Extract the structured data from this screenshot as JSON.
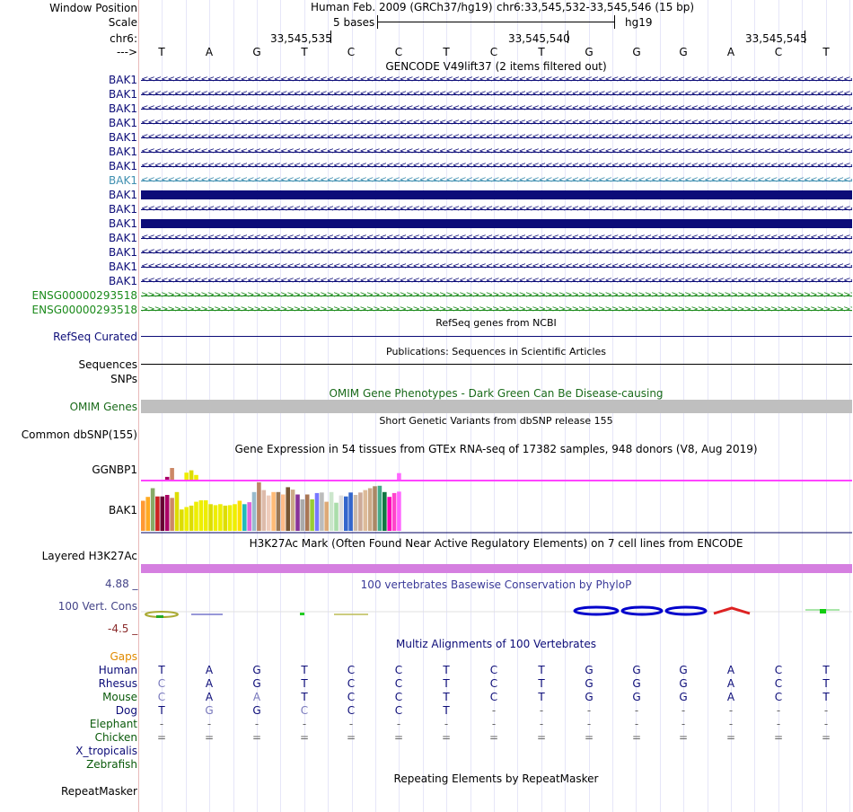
{
  "header": {
    "window_position_label": "Window Position",
    "scale_label": "Scale",
    "chrom_label": "chr6:",
    "strand_label": "--->",
    "assembly": "Human Feb. 2009 (GRCh37/hg19)",
    "position": "chr6:33,545,532-33,545,546 (15 bp)",
    "scale_text": "5 bases",
    "db_text": "hg19",
    "coord_ticks": [
      "33,545,535",
      "33,545,540",
      "33,545,545"
    ]
  },
  "sequence": [
    "T",
    "A",
    "G",
    "T",
    "C",
    "C",
    "T",
    "C",
    "T",
    "G",
    "G",
    "G",
    "A",
    "C",
    "T"
  ],
  "gencode": {
    "title": "GENCODE V49lift37 (2 items filtered out)",
    "tracks": [
      {
        "label": "BAK1",
        "style": "chevron",
        "color": "#0c0c78"
      },
      {
        "label": "BAK1",
        "style": "chevron",
        "color": "#0c0c78"
      },
      {
        "label": "BAK1",
        "style": "chevron",
        "color": "#0c0c78"
      },
      {
        "label": "BAK1",
        "style": "chevron",
        "color": "#0c0c78"
      },
      {
        "label": "BAK1",
        "style": "chevron",
        "color": "#0c0c78"
      },
      {
        "label": "BAK1",
        "style": "chevron",
        "color": "#0c0c78"
      },
      {
        "label": "BAK1",
        "style": "chevron",
        "color": "#0c0c78"
      },
      {
        "label": "BAK1",
        "style": "chevron",
        "color": "#3f8fb0"
      },
      {
        "label": "BAK1",
        "style": "thick",
        "color": "#0c0c78"
      },
      {
        "label": "BAK1",
        "style": "chevron",
        "color": "#0c0c78"
      },
      {
        "label": "BAK1",
        "style": "thick",
        "color": "#0c0c78"
      },
      {
        "label": "BAK1",
        "style": "chevron",
        "color": "#0c0c78"
      },
      {
        "label": "BAK1",
        "style": "chevron",
        "color": "#0c0c78"
      },
      {
        "label": "BAK1",
        "style": "chevron",
        "color": "#0c0c78"
      },
      {
        "label": "BAK1",
        "style": "chevron",
        "color": "#0c0c78"
      },
      {
        "label": "ENSG00000293518",
        "style": "chevron-right",
        "color": "#1a8a1a"
      },
      {
        "label": "ENSG00000293518",
        "style": "chevron-right",
        "color": "#1a8a1a"
      }
    ]
  },
  "refseq": {
    "title": "RefSeq genes from NCBI",
    "label": "RefSeq Curated"
  },
  "publications": {
    "title": "Publications: Sequences in Scientific Articles",
    "label": "Sequences"
  },
  "snps": {
    "label": "SNPs"
  },
  "omim": {
    "title": "OMIM Gene Phenotypes - Dark Green Can Be Disease-causing",
    "label": "OMIM Genes"
  },
  "dbsnp": {
    "title": "Short Genetic Variants from dbSNP release 155",
    "label": "Common dbSNP(155)"
  },
  "gtex": {
    "title": "Gene Expression in 54 tissues from GTEx RNA-seq of 17382 samples, 948 donors (V8, Aug 2019)",
    "genes": [
      "GGNBP1",
      "BAK1"
    ],
    "ggnbp1_values": [
      0,
      0,
      0,
      0,
      0,
      0.12,
      0.5,
      0,
      0,
      0.3,
      0.4,
      0.2,
      0,
      0,
      0,
      0,
      0,
      0,
      0,
      0,
      0,
      0,
      0,
      0,
      0,
      0,
      0,
      0,
      0,
      0,
      0,
      0,
      0,
      0,
      0,
      0,
      0,
      0,
      0,
      0,
      0,
      0,
      0,
      0,
      0,
      0,
      0,
      0,
      0,
      0,
      0,
      0,
      0,
      0.28
    ],
    "bak1_values": [
      0.62,
      0.7,
      0.88,
      0.71,
      0.71,
      0.74,
      0.68,
      0.8,
      0.44,
      0.49,
      0.52,
      0.6,
      0.63,
      0.63,
      0.55,
      0.53,
      0.55,
      0.52,
      0.53,
      0.55,
      0.62,
      0.55,
      0.59,
      0.8,
      1.0,
      0.84,
      0.73,
      0.8,
      0.8,
      0.75,
      0.9,
      0.85,
      0.75,
      0.65,
      0.75,
      0.65,
      0.78,
      0.79,
      0.6,
      0.8,
      0.58,
      0.73,
      0.71,
      0.79,
      0.74,
      0.79,
      0.84,
      0.88,
      0.92,
      0.93,
      0.8,
      0.7,
      0.78,
      0.81
    ],
    "colors": [
      "#ff9933",
      "#ffaa22",
      "#88aa66",
      "#cc2222",
      "#660033",
      "#aa0066",
      "#cc8866",
      "#dddd00",
      "#dddd00",
      "#eeee00",
      "#dddd00",
      "#eeee00",
      "#eeee00",
      "#eeee00",
      "#dddd00",
      "#eeee00",
      "#eeee00",
      "#dddd00",
      "#eeee00",
      "#eeee00",
      "#ffdd00",
      "#22bbbb",
      "#dd66dd",
      "#99bbcc",
      "#bb8866",
      "#ddbbaa",
      "#eeccbb",
      "#ffbb77",
      "#997755",
      "#ffbb88",
      "#775533",
      "#ccaa88",
      "#883399",
      "#aaaaaa",
      "#aa7755",
      "#99cc33",
      "#7777ff",
      "#bbbbbb",
      "#ddaa77",
      "#cce6cc",
      "#aaddaa",
      "#dddddd",
      "#3366cc",
      "#3366cc",
      "#ccbbaa",
      "#ccaa99",
      "#ddbb99",
      "#ccaa88",
      "#aa8866",
      "#44aa88",
      "#117744",
      "#ff00bb",
      "#ff44cc",
      "#ff66ff"
    ]
  },
  "h3k27ac": {
    "title": "H3K27Ac Mark (Often Found Near Active Regulatory Elements) on 7 cell lines from ENCODE",
    "label": "Layered H3K27Ac"
  },
  "phylop": {
    "title": "100 vertebrates Basewise Conservation by PhyloP",
    "label": "100 Vert. Cons",
    "max": "4.88 _",
    "min": "-4.5 _"
  },
  "multiz": {
    "title": "Multiz Alignments of 100 Vertebrates",
    "gaps_label": "Gaps",
    "species": [
      {
        "name": "Human",
        "row": "TAGTCCTCTGGGACT"
      },
      {
        "name": "Rhesus",
        "row": "CAGTCCTCTGGGACT"
      },
      {
        "name": "Mouse",
        "row": "CAATCCTCTGGGACT"
      },
      {
        "name": "Dog",
        "row": "TGGCCCT--------"
      },
      {
        "name": "Elephant",
        "row": "---------------"
      },
      {
        "name": "Chicken",
        "row": "==============="
      },
      {
        "name": "X_tropicalis",
        "row": ""
      },
      {
        "name": "Zebrafish",
        "row": ""
      }
    ]
  },
  "repeatmasker": {
    "title": "Repeating Elements by RepeatMasker",
    "label": "RepeatMasker"
  },
  "colors": {
    "navy": "#0c0c78",
    "green": "#1a6b1a",
    "omim_gray": "#bfbfbf",
    "h3k27ac": "#d57fe0",
    "magenta_line": "#ff44ff",
    "phylop_blue": "#0000cc"
  }
}
